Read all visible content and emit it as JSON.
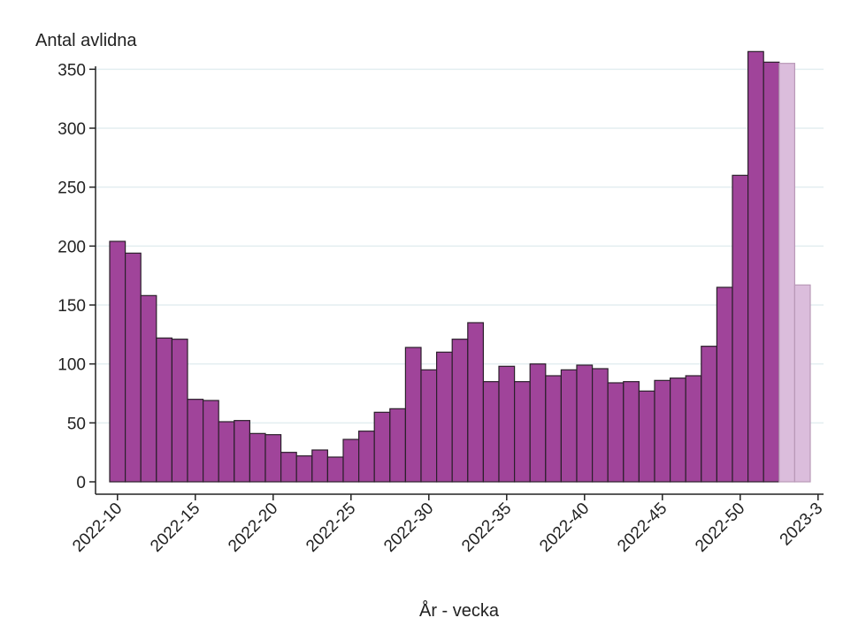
{
  "chart_data": {
    "type": "bar",
    "ylabel": "Antal avlidna",
    "xlabel": "År - vecka",
    "ylim": [
      0,
      375
    ],
    "yticks": [
      0,
      50,
      100,
      150,
      200,
      250,
      300,
      350
    ],
    "grid": true,
    "x_tick_labels": [
      "2022-10",
      "2022-15",
      "2022-20",
      "2022-25",
      "2022-30",
      "2022-35",
      "2022-40",
      "2022-45",
      "2022-50",
      "2023-3"
    ],
    "categories": [
      "2022-10",
      "2022-11",
      "2022-12",
      "2022-13",
      "2022-14",
      "2022-15",
      "2022-16",
      "2022-17",
      "2022-18",
      "2022-19",
      "2022-20",
      "2022-21",
      "2022-22",
      "2022-23",
      "2022-24",
      "2022-25",
      "2022-26",
      "2022-27",
      "2022-28",
      "2022-29",
      "2022-30",
      "2022-31",
      "2022-32",
      "2022-33",
      "2022-34",
      "2022-35",
      "2022-36",
      "2022-37",
      "2022-38",
      "2022-39",
      "2022-40",
      "2022-41",
      "2022-42",
      "2022-43",
      "2022-44",
      "2022-45",
      "2022-46",
      "2022-47",
      "2022-48",
      "2022-49",
      "2022-50",
      "2022-51",
      "2022-52",
      "2023-1",
      "2023-2"
    ],
    "series": [
      {
        "values": [
          204,
          194,
          158,
          122,
          121,
          70,
          69,
          51,
          52,
          41,
          40,
          25,
          22,
          27,
          21,
          36,
          43,
          59,
          62,
          114,
          95,
          110,
          121,
          135,
          85,
          98,
          85,
          100,
          90,
          95,
          99,
          96,
          84,
          85,
          77,
          86,
          88,
          90,
          115,
          165,
          260,
          365,
          356,
          355,
          167
        ],
        "preliminary_from_index": 43
      }
    ],
    "colors": {
      "bar": "#a0449a",
      "bar_preliminary": "#dbbddc",
      "bar_outline": "#2b1f2b",
      "bar_outline_preliminary": "#b999b8",
      "grid": "#e3eef0",
      "axis": "#222222"
    }
  }
}
